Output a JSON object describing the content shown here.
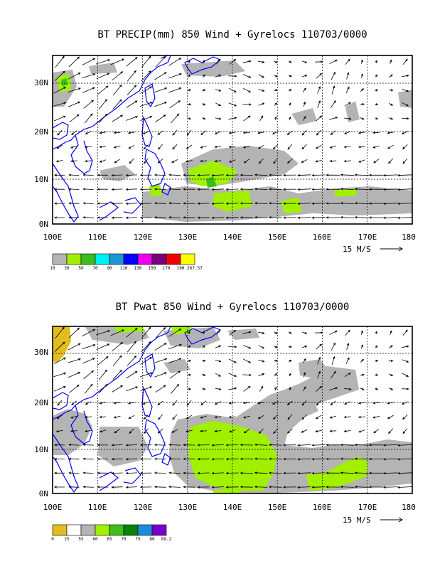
{
  "panels": [
    {
      "title": "BT PRECIP(mm) 850 Wind + Gyrelocs 110703/0000",
      "x_ticks": [
        "100E",
        "110E",
        "120E",
        "130E",
        "140E",
        "150E",
        "160E",
        "170E",
        "180"
      ],
      "y_ticks": [
        "0N",
        "10N",
        "20N",
        "30N"
      ],
      "ref_vector": "15 M/S",
      "colorbar": {
        "colors": [
          "#b4b4b4",
          "#a0f000",
          "#3cbe1e",
          "#00f0f0",
          "#1e96d2",
          "#0000ff",
          "#f000f0",
          "#780078",
          "#f00000",
          "#ffff00"
        ],
        "labels": [
          "10",
          "30",
          "50",
          "70",
          "90",
          "110",
          "130",
          "150",
          "170",
          "190",
          "267.57"
        ]
      }
    },
    {
      "title": "BT Pwat 850 Wind + Gyrelocs 110703/0000",
      "x_ticks": [
        "100E",
        "110E",
        "120E",
        "130E",
        "140E",
        "150E",
        "160E",
        "170E",
        "180"
      ],
      "y_ticks": [
        "0N",
        "10N",
        "20N",
        "30N"
      ],
      "ref_vector": "15 M/S",
      "colorbar": {
        "colors": [
          "#e1be1e",
          "#ffffff",
          "#b4b4b4",
          "#a0f000",
          "#3cbe1e",
          "#0a820a",
          "#1e8cdc",
          "#7800c8"
        ],
        "labels": [
          "0",
          "25",
          "55",
          "60",
          "65",
          "70",
          "75",
          "80",
          "89.2"
        ]
      }
    }
  ]
}
